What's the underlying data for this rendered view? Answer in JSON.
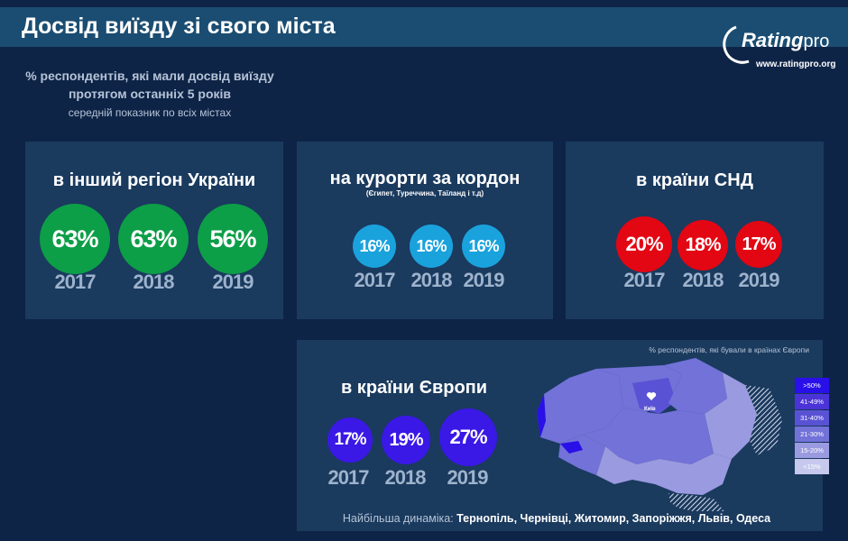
{
  "header": {
    "title": "Досвід виїзду зі свого міста"
  },
  "logo": {
    "name_main": "Rating",
    "name_suffix": "pro",
    "url": "www.ratingpro.org"
  },
  "intro": {
    "line1": "% респондентів, які мали досвід виїзду",
    "line2": "протягом останніх 5 років",
    "line3": "середній показник по всіх містах"
  },
  "panels": {
    "ukraine": {
      "title": "в інший регіон України",
      "color": "#0d9e48",
      "items": [
        {
          "value": "63%",
          "year": "2017"
        },
        {
          "value": "63%",
          "year": "2018"
        },
        {
          "value": "56%",
          "year": "2019"
        }
      ]
    },
    "resorts": {
      "title": "на курорти за кордон",
      "subtitle": "(Єгипет, Туреччина, Таїланд і т.д)",
      "color": "#1aa2dd",
      "items": [
        {
          "value": "16%",
          "year": "2017"
        },
        {
          "value": "16%",
          "year": "2018"
        },
        {
          "value": "16%",
          "year": "2019"
        }
      ]
    },
    "cis": {
      "title": "в країни СНД",
      "color": "#e30613",
      "items": [
        {
          "value": "20%",
          "year": "2017"
        },
        {
          "value": "18%",
          "year": "2018"
        },
        {
          "value": "17%",
          "year": "2019"
        }
      ]
    },
    "europe": {
      "title": "в країни Європи",
      "color": "#3a18e6",
      "items": [
        {
          "value": "17%",
          "year": "2017"
        },
        {
          "value": "19%",
          "year": "2018"
        },
        {
          "value": "27%",
          "year": "2019"
        }
      ]
    }
  },
  "map": {
    "caption": "% респондентів, які бували в країнах Європи",
    "capital_label": "Київ",
    "legend": [
      {
        "label": ">50%",
        "color": "#2a10e8"
      },
      {
        "label": "41-49%",
        "color": "#4a34d8"
      },
      {
        "label": "31-40%",
        "color": "#5a52d4"
      },
      {
        "label": "21-30%",
        "color": "#7272d8"
      },
      {
        "label": "15-20%",
        "color": "#9a9ae0"
      },
      {
        "label": "<15%",
        "color": "#c6c8ee"
      }
    ],
    "dynamics_label": "Найбільша динаміка:",
    "dynamics_cities": "Тернопіль, Чернівці, Житомир, Запоріжжя, Львів, Одеса"
  }
}
